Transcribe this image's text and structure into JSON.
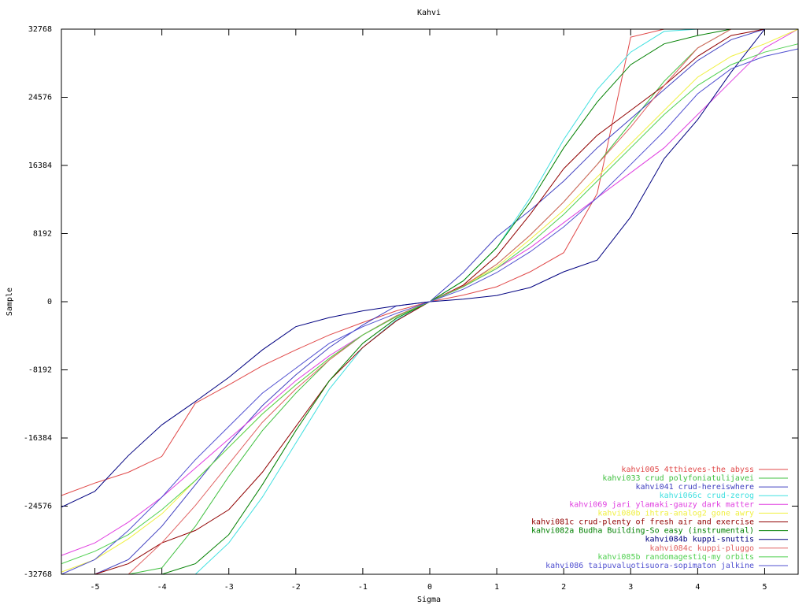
{
  "chart_data": {
    "type": "line",
    "title": "Kahvi",
    "x_label": "Sigma",
    "y_label": "Sample",
    "x": [
      -5.5,
      -5,
      -4.5,
      -4,
      -3.5,
      -3,
      -2.5,
      -2,
      -1.5,
      -1,
      -0.5,
      0,
      0.5,
      1,
      1.5,
      2,
      2.5,
      3,
      3.5,
      4,
      4.5,
      5,
      5.5
    ],
    "xlim": [
      -5.5,
      5.5
    ],
    "xticks": [
      -5,
      -4,
      -3,
      -2,
      -1,
      0,
      1,
      2,
      3,
      4,
      5
    ],
    "ylim": [
      -32768,
      32768
    ],
    "yticks": [
      -32768,
      -24576,
      -16384,
      -8192,
      0,
      8192,
      16384,
      24576,
      32768
    ],
    "grid": false,
    "legend": "lower right",
    "series": [
      {
        "name": "kahvi005 4tthieves-the abyss",
        "color": "#e04848",
        "values": [
          -23300,
          -21800,
          -20500,
          -18600,
          -12200,
          -10000,
          -7700,
          -5800,
          -4000,
          -2500,
          -1100,
          0,
          800,
          1800,
          3600,
          5900,
          13000,
          31800,
          32768,
          32768,
          32768,
          32768,
          32768
        ]
      },
      {
        "name": "kahvi033 crud polyfoniatulijavei",
        "color": "#40c040",
        "values": [
          -32768,
          -32768,
          -32768,
          -32000,
          -27000,
          -21000,
          -15500,
          -11000,
          -7000,
          -4000,
          -1700,
          0,
          1800,
          4500,
          8000,
          12000,
          16500,
          21500,
          26500,
          30500,
          32768,
          32768,
          32768
        ]
      },
      {
        "name": "kahvi041 crud-hereiswhere",
        "color": "#4040c0",
        "values": [
          -32768,
          -32768,
          -31000,
          -27000,
          -22000,
          -17000,
          -12500,
          -8800,
          -5500,
          -2800,
          -500,
          0,
          3500,
          7800,
          11000,
          14500,
          18500,
          22000,
          25500,
          29000,
          31500,
          32768,
          32768
        ]
      },
      {
        "name": "kahvi066c crud-zerog",
        "color": "#40e0e0",
        "values": [
          -32768,
          -32768,
          -32768,
          -32768,
          -32768,
          -29000,
          -23500,
          -17000,
          -10500,
          -5500,
          -2200,
          0,
          2500,
          6500,
          12500,
          19500,
          25500,
          30000,
          32500,
          32768,
          32768,
          32768,
          32768
        ]
      },
      {
        "name": "kahvi069 jari  ylamaki-gauzy dark matter",
        "color": "#e040e0",
        "values": [
          -30500,
          -29000,
          -26500,
          -23500,
          -20000,
          -16500,
          -13000,
          -9500,
          -6500,
          -4000,
          -1800,
          0,
          1800,
          4000,
          6500,
          9500,
          12500,
          15500,
          18500,
          22500,
          26500,
          30500,
          32768
        ]
      },
      {
        "name": "kahvi080b ihtra-analog2 gone awry",
        "color": "#f0f040",
        "values": [
          -32500,
          -31000,
          -28500,
          -25500,
          -21500,
          -17500,
          -13500,
          -10000,
          -6800,
          -4000,
          -1800,
          0,
          1900,
          4200,
          7500,
          11000,
          15000,
          19000,
          23000,
          27000,
          29500,
          31000,
          32768
        ]
      },
      {
        "name": "kahvi081c crud-plenty of fresh air and exercise",
        "color": "#900000",
        "values": [
          -32768,
          -32768,
          -31500,
          -29000,
          -27500,
          -25000,
          -20500,
          -15000,
          -9500,
          -5500,
          -2300,
          0,
          2000,
          5500,
          10500,
          16000,
          20000,
          23000,
          26000,
          29500,
          32000,
          32768,
          32768
        ]
      },
      {
        "name": "kahvi082a Budha Building-So easy (instrumental)",
        "color": "#008000",
        "values": [
          -32768,
          -32768,
          -32768,
          -32768,
          -31500,
          -28000,
          -22000,
          -15500,
          -9500,
          -5000,
          -2000,
          0,
          2500,
          6500,
          12000,
          18500,
          24000,
          28500,
          31000,
          32000,
          32768,
          32768,
          32768
        ]
      },
      {
        "name": "kahvi084b kuppi-snuttis",
        "color": "#000080",
        "values": [
          -24700,
          -22800,
          -18500,
          -14800,
          -12000,
          -9100,
          -5800,
          -3000,
          -1900,
          -1100,
          -500,
          0,
          300,
          750,
          1700,
          3600,
          5000,
          10200,
          17200,
          21900,
          27600,
          32768,
          32768
        ]
      },
      {
        "name": "kahvi084c kuppi-pluggo",
        "color": "#e06060",
        "values": [
          -32768,
          -32768,
          -32768,
          -29000,
          -24500,
          -19500,
          -14500,
          -10500,
          -7000,
          -4000,
          -1700,
          0,
          1900,
          4500,
          8000,
          12000,
          16500,
          21000,
          26000,
          30500,
          32768,
          32768,
          32768
        ]
      },
      {
        "name": "kahvi085b randomagestiq-my orbits",
        "color": "#50d050",
        "values": [
          -31500,
          -30000,
          -28000,
          -25000,
          -21500,
          -17500,
          -13500,
          -10000,
          -6800,
          -4000,
          -1800,
          0,
          1800,
          4000,
          7000,
          10500,
          14500,
          18500,
          22500,
          26000,
          28500,
          30000,
          31000
        ]
      },
      {
        "name": "kahvi086 taipuvaluotisuora-sopimaton jalkine",
        "color": "#5050d0",
        "values": [
          -32768,
          -31000,
          -27500,
          -23500,
          -19000,
          -15000,
          -11000,
          -8000,
          -5000,
          -3000,
          -1400,
          0,
          1500,
          3500,
          6000,
          9000,
          12500,
          16500,
          20500,
          25000,
          28000,
          29500,
          30400
        ]
      }
    ]
  }
}
